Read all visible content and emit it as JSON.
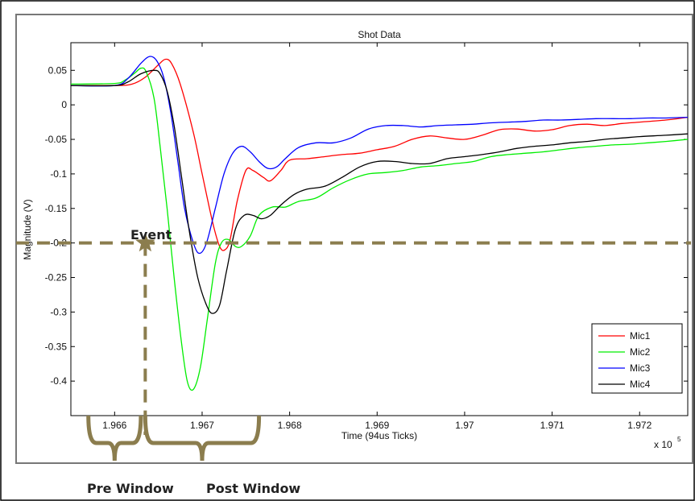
{
  "chart_data": {
    "type": "line",
    "title": "Shot Data",
    "xlabel": "Time (94us Ticks)",
    "ylabel": "Magnitude (V)",
    "x_multiplier_label": "x 10",
    "x_multiplier_exponent": "5",
    "xlim": [
      196550,
      197255
    ],
    "ylim": [
      -0.45,
      0.09
    ],
    "x_tick_labels": [
      "1.966",
      "1.967",
      "1.968",
      "1.969",
      "1.97",
      "1.971",
      "1.972"
    ],
    "x_tick_values": [
      196600,
      196700,
      196800,
      196900,
      197000,
      197100,
      197200
    ],
    "y_tick_labels": [
      "0.05",
      "0",
      "-0.05",
      "-0.1",
      "-0.15",
      "-0.2",
      "-0.25",
      "-0.3",
      "-0.35",
      "-0.4"
    ],
    "y_tick_values": [
      0.05,
      0,
      -0.05,
      -0.1,
      -0.15,
      -0.2,
      -0.25,
      -0.3,
      -0.35,
      -0.4
    ],
    "grid": false,
    "legend_position": "bottom-right",
    "series": [
      {
        "name": "Mic1",
        "color": "#ff0000",
        "points": [
          [
            196550,
            0.028
          ],
          [
            196600,
            0.028
          ],
          [
            196620,
            0.03
          ],
          [
            196635,
            0.04
          ],
          [
            196650,
            0.058
          ],
          [
            196658,
            0.066
          ],
          [
            196665,
            0.06
          ],
          [
            196675,
            0.03
          ],
          [
            196690,
            -0.04
          ],
          [
            196700,
            -0.1
          ],
          [
            196712,
            -0.17
          ],
          [
            196720,
            -0.205
          ],
          [
            196726,
            -0.21
          ],
          [
            196732,
            -0.195
          ],
          [
            196740,
            -0.14
          ],
          [
            196750,
            -0.095
          ],
          [
            196758,
            -0.095
          ],
          [
            196770,
            -0.105
          ],
          [
            196778,
            -0.11
          ],
          [
            196790,
            -0.095
          ],
          [
            196800,
            -0.08
          ],
          [
            196820,
            -0.078
          ],
          [
            196840,
            -0.075
          ],
          [
            196860,
            -0.072
          ],
          [
            196880,
            -0.07
          ],
          [
            196900,
            -0.065
          ],
          [
            196920,
            -0.06
          ],
          [
            196940,
            -0.05
          ],
          [
            196960,
            -0.045
          ],
          [
            196980,
            -0.048
          ],
          [
            197000,
            -0.05
          ],
          [
            197020,
            -0.044
          ],
          [
            197040,
            -0.036
          ],
          [
            197060,
            -0.035
          ],
          [
            197080,
            -0.038
          ],
          [
            197100,
            -0.036
          ],
          [
            197120,
            -0.03
          ],
          [
            197140,
            -0.028
          ],
          [
            197160,
            -0.03
          ],
          [
            197180,
            -0.027
          ],
          [
            197200,
            -0.025
          ],
          [
            197230,
            -0.022
          ],
          [
            197255,
            -0.018
          ]
        ]
      },
      {
        "name": "Mic2",
        "color": "#00ee00",
        "points": [
          [
            196550,
            0.03
          ],
          [
            196600,
            0.031
          ],
          [
            196612,
            0.036
          ],
          [
            196623,
            0.046
          ],
          [
            196630,
            0.053
          ],
          [
            196636,
            0.048
          ],
          [
            196645,
            0.01
          ],
          [
            196652,
            -0.06
          ],
          [
            196660,
            -0.15
          ],
          [
            196668,
            -0.25
          ],
          [
            196676,
            -0.34
          ],
          [
            196683,
            -0.4
          ],
          [
            196690,
            -0.412
          ],
          [
            196698,
            -0.38
          ],
          [
            196706,
            -0.31
          ],
          [
            196715,
            -0.23
          ],
          [
            196722,
            -0.2
          ],
          [
            196730,
            -0.195
          ],
          [
            196738,
            -0.205
          ],
          [
            196745,
            -0.205
          ],
          [
            196755,
            -0.19
          ],
          [
            196765,
            -0.16
          ],
          [
            196780,
            -0.148
          ],
          [
            196795,
            -0.148
          ],
          [
            196810,
            -0.14
          ],
          [
            196830,
            -0.135
          ],
          [
            196850,
            -0.12
          ],
          [
            196870,
            -0.108
          ],
          [
            196890,
            -0.1
          ],
          [
            196910,
            -0.098
          ],
          [
            196930,
            -0.095
          ],
          [
            196950,
            -0.09
          ],
          [
            196970,
            -0.088
          ],
          [
            196990,
            -0.085
          ],
          [
            197010,
            -0.082
          ],
          [
            197030,
            -0.075
          ],
          [
            197050,
            -0.072
          ],
          [
            197070,
            -0.07
          ],
          [
            197090,
            -0.068
          ],
          [
            197110,
            -0.065
          ],
          [
            197130,
            -0.062
          ],
          [
            197150,
            -0.06
          ],
          [
            197170,
            -0.058
          ],
          [
            197190,
            -0.057
          ],
          [
            197210,
            -0.055
          ],
          [
            197230,
            -0.053
          ],
          [
            197255,
            -0.05
          ]
        ]
      },
      {
        "name": "Mic3",
        "color": "#0000ff",
        "points": [
          [
            196550,
            0.028
          ],
          [
            196600,
            0.028
          ],
          [
            196615,
            0.038
          ],
          [
            196630,
            0.06
          ],
          [
            196640,
            0.07
          ],
          [
            196648,
            0.064
          ],
          [
            196656,
            0.04
          ],
          [
            196664,
            -0.01
          ],
          [
            196672,
            -0.08
          ],
          [
            196680,
            -0.15
          ],
          [
            196690,
            -0.2
          ],
          [
            196697,
            -0.215
          ],
          [
            196705,
            -0.2
          ],
          [
            196715,
            -0.15
          ],
          [
            196725,
            -0.1
          ],
          [
            196735,
            -0.07
          ],
          [
            196745,
            -0.06
          ],
          [
            196755,
            -0.068
          ],
          [
            196765,
            -0.082
          ],
          [
            196775,
            -0.092
          ],
          [
            196785,
            -0.09
          ],
          [
            196795,
            -0.078
          ],
          [
            196810,
            -0.062
          ],
          [
            196830,
            -0.055
          ],
          [
            196850,
            -0.055
          ],
          [
            196870,
            -0.048
          ],
          [
            196890,
            -0.035
          ],
          [
            196910,
            -0.03
          ],
          [
            196930,
            -0.03
          ],
          [
            196950,
            -0.032
          ],
          [
            196970,
            -0.03
          ],
          [
            196990,
            -0.029
          ],
          [
            197010,
            -0.028
          ],
          [
            197030,
            -0.026
          ],
          [
            197050,
            -0.025
          ],
          [
            197070,
            -0.024
          ],
          [
            197090,
            -0.022
          ],
          [
            197110,
            -0.022
          ],
          [
            197130,
            -0.021
          ],
          [
            197150,
            -0.02
          ],
          [
            197170,
            -0.02
          ],
          [
            197190,
            -0.02
          ],
          [
            197210,
            -0.019
          ],
          [
            197230,
            -0.019
          ],
          [
            197255,
            -0.018
          ]
        ]
      },
      {
        "name": "Mic4",
        "color": "#000000",
        "points": [
          [
            196550,
            0.028
          ],
          [
            196600,
            0.028
          ],
          [
            196615,
            0.033
          ],
          [
            196630,
            0.045
          ],
          [
            196645,
            0.05
          ],
          [
            196652,
            0.045
          ],
          [
            196660,
            0.02
          ],
          [
            196668,
            -0.03
          ],
          [
            196676,
            -0.1
          ],
          [
            196685,
            -0.18
          ],
          [
            196695,
            -0.25
          ],
          [
            196705,
            -0.29
          ],
          [
            196712,
            -0.302
          ],
          [
            196720,
            -0.29
          ],
          [
            196728,
            -0.24
          ],
          [
            196738,
            -0.18
          ],
          [
            196748,
            -0.16
          ],
          [
            196758,
            -0.16
          ],
          [
            196768,
            -0.165
          ],
          [
            196778,
            -0.16
          ],
          [
            196790,
            -0.145
          ],
          [
            196805,
            -0.13
          ],
          [
            196820,
            -0.122
          ],
          [
            196840,
            -0.118
          ],
          [
            196860,
            -0.105
          ],
          [
            196880,
            -0.09
          ],
          [
            196900,
            -0.082
          ],
          [
            196920,
            -0.082
          ],
          [
            196940,
            -0.085
          ],
          [
            196960,
            -0.085
          ],
          [
            196980,
            -0.078
          ],
          [
            197000,
            -0.075
          ],
          [
            197020,
            -0.072
          ],
          [
            197040,
            -0.068
          ],
          [
            197060,
            -0.063
          ],
          [
            197080,
            -0.06
          ],
          [
            197100,
            -0.058
          ],
          [
            197120,
            -0.055
          ],
          [
            197140,
            -0.053
          ],
          [
            197160,
            -0.05
          ],
          [
            197180,
            -0.048
          ],
          [
            197200,
            -0.046
          ],
          [
            197230,
            -0.044
          ],
          [
            197255,
            -0.042
          ]
        ]
      }
    ],
    "annotations": {
      "event_label": "Event",
      "event_level": -0.2,
      "event_x": 196635,
      "pre_window_label": "Pre Window",
      "post_window_label": "Post Window",
      "pre_window_range": [
        196570,
        196630
      ],
      "post_window_range": [
        196635,
        196765
      ],
      "annotation_color": "#8b7d4e"
    }
  }
}
